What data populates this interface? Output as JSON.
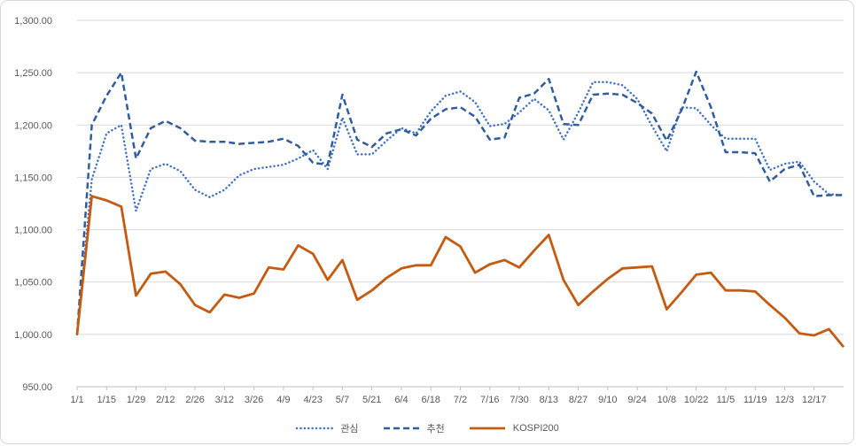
{
  "chart_data": {
    "type": "line",
    "title": "",
    "grid": "horizontal",
    "legend_position": "bottom",
    "ylim": [
      950,
      1300
    ],
    "ytick_step": 50,
    "ytick_labels": [
      "950.00",
      "1,000.00",
      "1,050.00",
      "1,100.00",
      "1,150.00",
      "1,200.00",
      "1,250.00",
      "1,300.00"
    ],
    "xtick_labels": [
      "1/1",
      "1/15",
      "1/29",
      "2/12",
      "2/26",
      "3/12",
      "3/26",
      "4/9",
      "4/23",
      "5/7",
      "5/21",
      "6/4",
      "6/18",
      "7/2",
      "7/16",
      "7/30",
      "8/13",
      "8/27",
      "9/10",
      "9/24",
      "10/8",
      "10/22",
      "11/5",
      "11/19",
      "12/3",
      "12/17"
    ],
    "categories": [
      "1/1",
      "1/8",
      "1/15",
      "1/22",
      "1/29",
      "2/5",
      "2/12",
      "2/19",
      "2/26",
      "3/5",
      "3/12",
      "3/19",
      "3/26",
      "4/2",
      "4/9",
      "4/16",
      "4/23",
      "4/30",
      "5/7",
      "5/14",
      "5/21",
      "5/28",
      "6/4",
      "6/11",
      "6/18",
      "6/25",
      "7/2",
      "7/9",
      "7/16",
      "7/23",
      "7/30",
      "8/6",
      "8/13",
      "8/20",
      "8/27",
      "9/3",
      "9/10",
      "9/17",
      "9/24",
      "10/1",
      "10/8",
      "10/15",
      "10/22",
      "10/29",
      "11/5",
      "11/12",
      "11/19",
      "11/26",
      "12/3",
      "12/10",
      "12/17",
      "12/24",
      "12/31"
    ],
    "series": [
      {
        "key": "interest",
        "name": "관심",
        "style": "dotted",
        "color": "#4472C4",
        "values": [
          1000,
          1148,
          1192,
          1200,
          1118,
          1158,
          1163,
          1156,
          1138,
          1131,
          1138,
          1152,
          1158,
          1160,
          1162,
          1168,
          1176,
          1158,
          1207,
          1172,
          1172,
          1185,
          1197,
          1192,
          1213,
          1228,
          1232,
          1222,
          1199,
          1201,
          1212,
          1225,
          1214,
          1186,
          1212,
          1241,
          1241,
          1238,
          1225,
          1199,
          1175,
          1217,
          1216,
          1200,
          1187,
          1187,
          1187,
          1157,
          1163,
          1165,
          1146,
          1134,
          1133
        ]
      },
      {
        "key": "recommend",
        "name": "추천",
        "style": "dashed",
        "color": "#2F5D9E",
        "values": [
          1000,
          1200,
          1228,
          1250,
          1168,
          1197,
          1204,
          1197,
          1185,
          1184,
          1184,
          1182,
          1183,
          1184,
          1187,
          1180,
          1164,
          1162,
          1229,
          1186,
          1179,
          1192,
          1196,
          1190,
          1206,
          1215,
          1217,
          1208,
          1186,
          1188,
          1226,
          1230,
          1244,
          1201,
          1200,
          1229,
          1230,
          1229,
          1221,
          1211,
          1185,
          1214,
          1251,
          1217,
          1174,
          1174,
          1173,
          1146,
          1158,
          1162,
          1132,
          1133,
          1133
        ]
      },
      {
        "key": "kospi200",
        "name": "KOSPI200",
        "style": "solid",
        "color": "#C55A11",
        "values": [
          1000,
          1132,
          1128,
          1122,
          1037,
          1058,
          1060,
          1048,
          1028,
          1021,
          1038,
          1035,
          1039,
          1064,
          1062,
          1085,
          1077,
          1052,
          1071,
          1033,
          1042,
          1054,
          1063,
          1066,
          1066,
          1093,
          1084,
          1059,
          1067,
          1071,
          1064,
          1080,
          1095,
          1052,
          1028,
          1041,
          1053,
          1063,
          1064,
          1065,
          1024,
          1040,
          1057,
          1059,
          1042,
          1042,
          1041,
          1028,
          1016,
          1001,
          999,
          1005,
          988
        ]
      }
    ]
  },
  "colors": {
    "background": "#FFFFFF",
    "gridline": "#D9D9D9",
    "axis_line": "#BFBFBF",
    "axis_text": "#595959",
    "frame_border": "#D8D8D8"
  }
}
